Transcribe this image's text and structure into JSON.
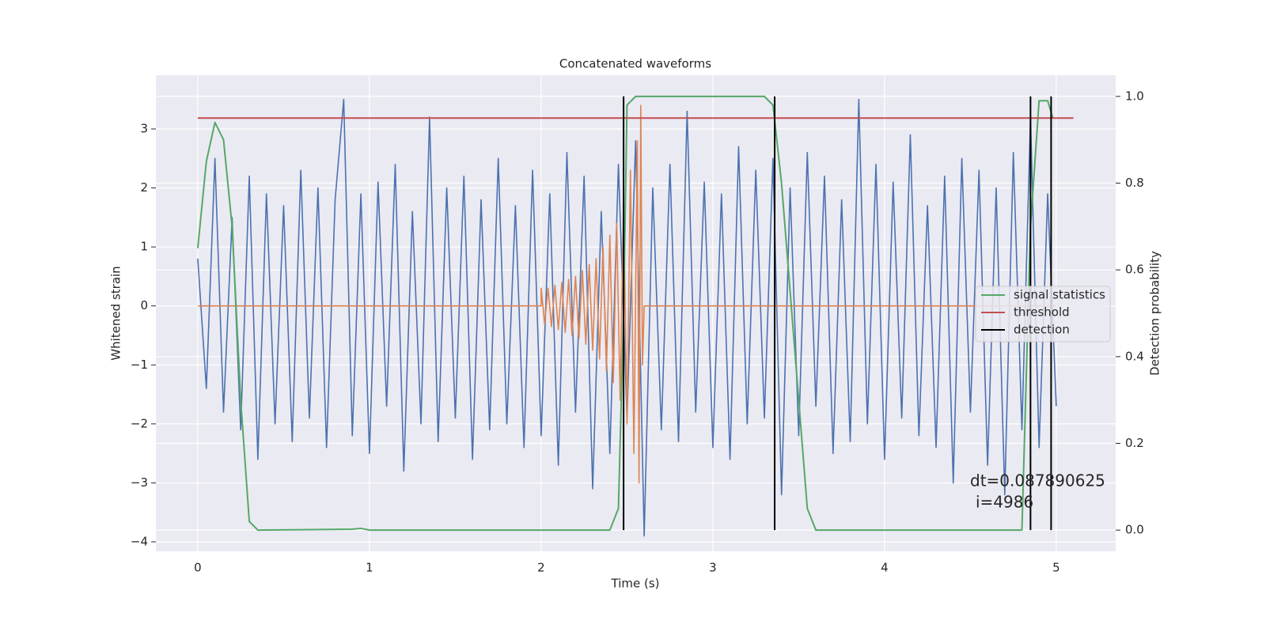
{
  "chart_data": {
    "type": "line",
    "title": "Concatenated waveforms",
    "xlabel": "Time (s)",
    "ylabel": "Whitened strain",
    "y2label": "Detection probability",
    "annotation": [
      "dt=0.087890625",
      "i=4986"
    ],
    "xlim": [
      -0.244,
      5.346
    ],
    "ylim": [
      -4.161,
      3.912
    ],
    "y2lim": [
      -0.049,
      1.049
    ],
    "xticks": [
      0,
      1,
      2,
      3,
      4,
      5
    ],
    "yticks": [
      {
        "value": -4,
        "label": "−4"
      },
      {
        "value": -3,
        "label": "−3"
      },
      {
        "value": -2,
        "label": "−2"
      },
      {
        "value": -1,
        "label": "−1"
      },
      0,
      1,
      2,
      3
    ],
    "y2ticks": [
      {
        "value": 0,
        "label": "0.0"
      },
      {
        "value": 0.2,
        "label": "0.2"
      },
      {
        "value": 0.4,
        "label": "0.4"
      },
      {
        "value": 0.6,
        "label": "0.6"
      },
      {
        "value": 0.8,
        "label": "0.8"
      },
      {
        "value": 1,
        "label": "1.0"
      }
    ],
    "grid": true,
    "legend_loc": "right",
    "series": [
      {
        "color": "#4c72b0",
        "axis": "y",
        "x": [
          0,
          0.05,
          0.1,
          0.15,
          0.2,
          0.25,
          0.3,
          0.35,
          0.4,
          0.45,
          0.5,
          0.55,
          0.6,
          0.65,
          0.7,
          0.75,
          0.8,
          0.85,
          0.9,
          0.95,
          1,
          1.05,
          1.1,
          1.15,
          1.2,
          1.25,
          1.3,
          1.35,
          1.4,
          1.45,
          1.5,
          1.55,
          1.6,
          1.65,
          1.7,
          1.75,
          1.8,
          1.85,
          1.9,
          1.95,
          2,
          2.05,
          2.1,
          2.15,
          2.2,
          2.25,
          2.3,
          2.35,
          2.4,
          2.45,
          2.5,
          2.55,
          2.6,
          2.65,
          2.7,
          2.75,
          2.8,
          2.85,
          2.9,
          2.95,
          3,
          3.05,
          3.1,
          3.15,
          3.2,
          3.25,
          3.3,
          3.35,
          3.4,
          3.45,
          3.5,
          3.55,
          3.6,
          3.65,
          3.7,
          3.75,
          3.8,
          3.85,
          3.9,
          3.95,
          4,
          4.05,
          4.1,
          4.15,
          4.2,
          4.25,
          4.3,
          4.35,
          4.4,
          4.45,
          4.5,
          4.55,
          4.6,
          4.65,
          4.7,
          4.75,
          4.8,
          4.85,
          4.9,
          4.95,
          5
        ],
        "values": [
          0.8,
          -1.4,
          2.5,
          -1.8,
          1.5,
          -2.1,
          2.2,
          -2.6,
          1.9,
          -2.0,
          1.7,
          -2.3,
          2.3,
          -1.9,
          2.0,
          -2.4,
          1.8,
          3.5,
          -2.2,
          1.9,
          -2.5,
          2.1,
          -1.7,
          2.4,
          -2.8,
          1.6,
          -2.0,
          3.2,
          -2.3,
          2.0,
          -1.9,
          2.2,
          -2.6,
          1.8,
          -2.1,
          2.5,
          -2.0,
          1.7,
          -2.4,
          2.3,
          -2.2,
          1.9,
          -2.7,
          2.6,
          -1.8,
          2.2,
          -3.1,
          1.6,
          -2.5,
          2.4,
          -1.9,
          2.8,
          -3.9,
          2.0,
          -2.1,
          2.4,
          -2.3,
          3.3,
          -1.8,
          2.1,
          -2.4,
          1.9,
          -2.6,
          2.7,
          -2.0,
          2.3,
          -1.9,
          2.5,
          -3.2,
          2.0,
          -2.2,
          2.6,
          -1.7,
          2.2,
          -2.5,
          1.8,
          -2.3,
          3.5,
          -2.0,
          2.4,
          -2.6,
          2.1,
          -1.9,
          2.9,
          -2.2,
          1.7,
          -2.4,
          2.2,
          -3.0,
          2.5,
          -1.8,
          2.3,
          -2.7,
          2.0,
          -3.2,
          2.6,
          -2.1,
          3.2,
          -2.4,
          1.9,
          -1.7
        ]
      },
      {
        "color": "#dd8452",
        "axis": "y",
        "x": [
          0,
          2.0,
          2.0,
          2.02,
          2.04,
          2.06,
          2.08,
          2.1,
          2.12,
          2.14,
          2.16,
          2.18,
          2.2,
          2.22,
          2.24,
          2.26,
          2.28,
          2.3,
          2.32,
          2.34,
          2.36,
          2.38,
          2.4,
          2.42,
          2.44,
          2.46,
          2.48,
          2.5,
          2.52,
          2.54,
          2.56,
          2.57,
          2.58,
          2.59,
          2.6,
          5.0
        ],
        "values": [
          0,
          0,
          0.3,
          -0.3,
          0.3,
          -0.35,
          0.35,
          -0.4,
          0.4,
          -0.45,
          0.45,
          -0.5,
          0.5,
          -0.55,
          0.6,
          -0.65,
          0.7,
          -0.75,
          0.8,
          -0.9,
          1.0,
          -1.1,
          1.2,
          -1.3,
          1.4,
          -1.6,
          1.8,
          -2.0,
          2.3,
          -2.5,
          2.8,
          -3.0,
          3.4,
          -1.0,
          0,
          0
        ]
      },
      {
        "name": "signal statistics",
        "color": "#55a868",
        "axis": "y2",
        "x": [
          0,
          0.05,
          0.1,
          0.15,
          0.2,
          0.25,
          0.3,
          0.35,
          0.9,
          0.95,
          1.0,
          2.4,
          2.45,
          2.48,
          2.5,
          2.55,
          3.3,
          3.35,
          3.4,
          3.5,
          3.55,
          3.6,
          4.8,
          4.85,
          4.9,
          4.95,
          4.98
        ],
        "values": [
          0.65,
          0.85,
          0.94,
          0.9,
          0.7,
          0.3,
          0.02,
          0,
          0.002,
          0.004,
          0,
          0,
          0.05,
          0.5,
          0.98,
          1.0,
          1.0,
          0.98,
          0.8,
          0.3,
          0.05,
          0,
          0,
          0.7,
          0.99,
          0.99,
          0.95
        ]
      },
      {
        "name": "threshold",
        "color": "#c44e52",
        "axis": "y2",
        "x": [
          0,
          5.1
        ],
        "values": [
          0.95,
          0.95
        ]
      },
      {
        "name": "detection",
        "color": "#000000",
        "axis": "y2",
        "type": "vline",
        "x": [
          2.48,
          3.36,
          4.85,
          4.97
        ],
        "values": [
          1,
          1,
          1,
          1
        ]
      }
    ]
  }
}
